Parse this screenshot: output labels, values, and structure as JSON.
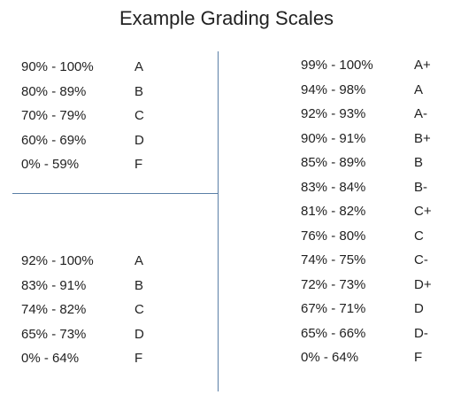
{
  "title": "Example Grading Scales",
  "scales": [
    {
      "rows": [
        [
          "90% - 100%",
          "A"
        ],
        [
          "80% - 89%",
          "B"
        ],
        [
          "70% - 79%",
          "C"
        ],
        [
          "60% - 69%",
          "D"
        ],
        [
          "0% - 59%",
          "F"
        ]
      ]
    },
    {
      "rows": [
        [
          "92% - 100%",
          "A"
        ],
        [
          "83% - 91%",
          "B"
        ],
        [
          "74% - 82%",
          "C"
        ],
        [
          "65% - 73%",
          "D"
        ],
        [
          "0% - 64%",
          "F"
        ]
      ]
    },
    {
      "rows": [
        [
          "99% - 100%",
          "A+"
        ],
        [
          "94% - 98%",
          "A"
        ],
        [
          "92% - 93%",
          "A-"
        ],
        [
          "90% - 91%",
          "B+"
        ],
        [
          "85% - 89%",
          "B"
        ],
        [
          "83% - 84%",
          "B-"
        ],
        [
          "81% - 82%",
          "C+"
        ],
        [
          "76% - 80%",
          "C"
        ],
        [
          "74% - 75%",
          "C-"
        ],
        [
          "72% - 73%",
          "D+"
        ],
        [
          "67% - 71%",
          "D"
        ],
        [
          "65% - 66%",
          "D-"
        ],
        [
          "0% - 64%",
          "F"
        ]
      ]
    }
  ]
}
